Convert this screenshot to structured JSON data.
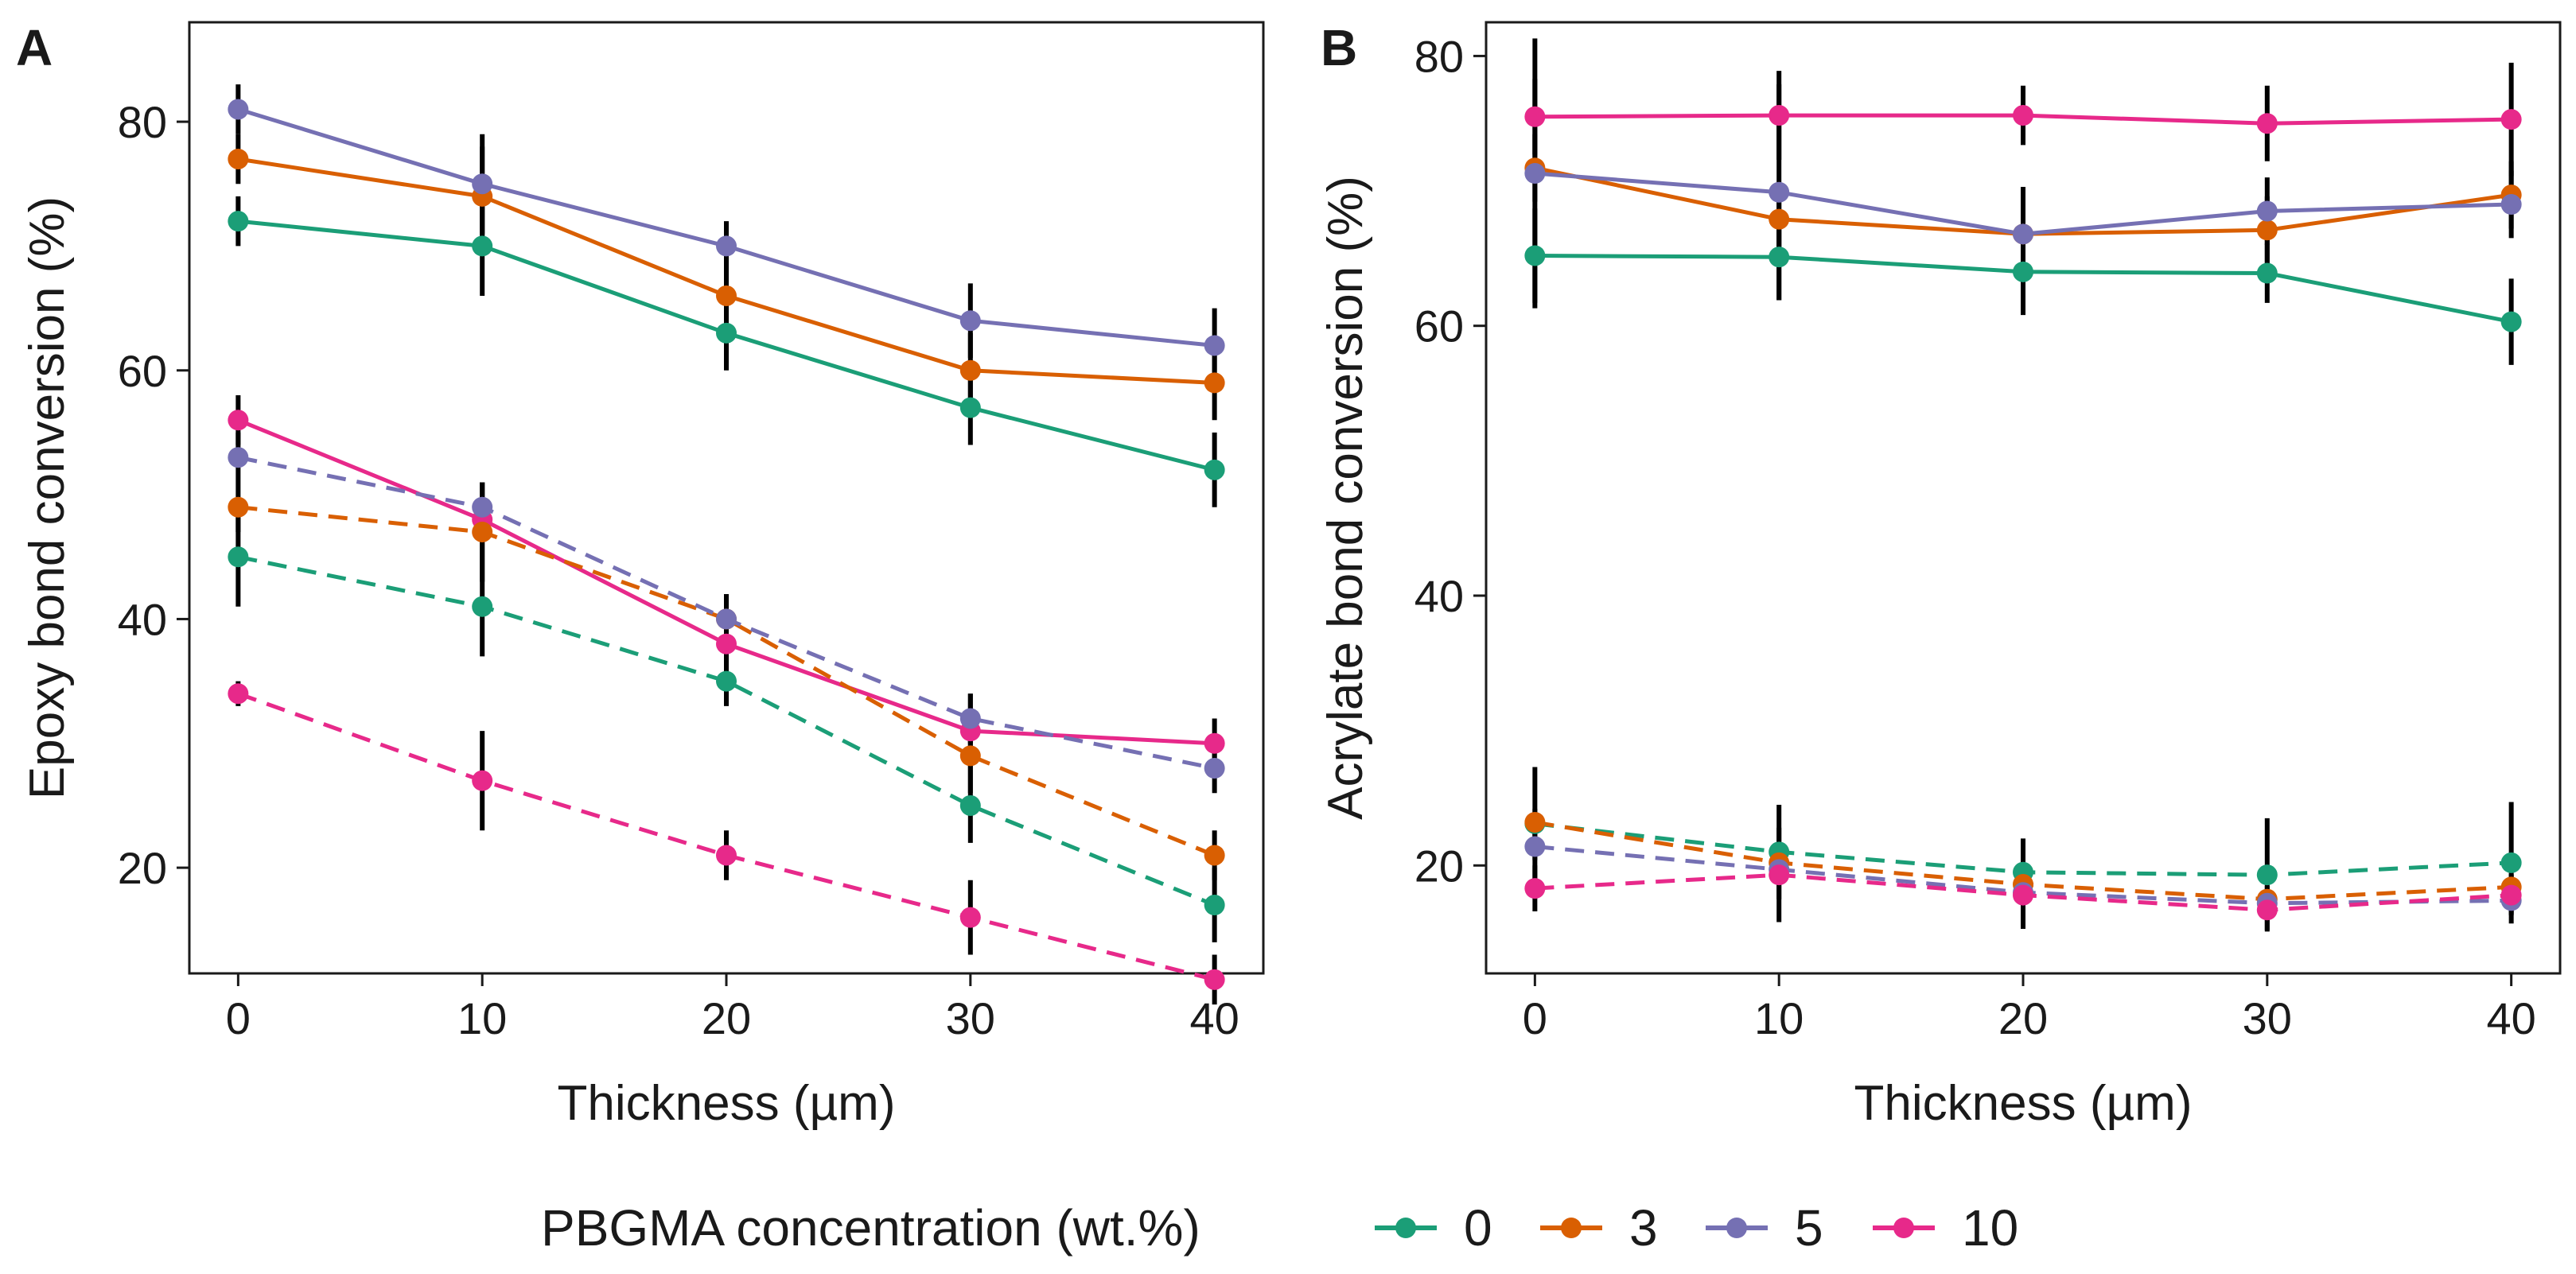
{
  "legend": {
    "title": "PBGMA concentration (wt.%)",
    "items": [
      {
        "label": "0",
        "color": "#1b9e77"
      },
      {
        "label": "3",
        "color": "#d95f02"
      },
      {
        "label": "5",
        "color": "#7570b3"
      },
      {
        "label": "10",
        "color": "#e7298a"
      }
    ]
  },
  "chart_data": [
    {
      "type": "line",
      "panel": "A",
      "xlabel": "Thickness (µm)",
      "ylabel": "Epoxy bond conversion (%)",
      "x": [
        0,
        10,
        20,
        30,
        40
      ],
      "xlim": [
        -2,
        42
      ],
      "ylim": [
        11.5,
        88
      ],
      "xticks": [
        0,
        10,
        20,
        30,
        40
      ],
      "yticks": [
        20,
        40,
        60,
        80
      ],
      "series": [
        {
          "name": "0",
          "style": "solid",
          "color": "#1b9e77",
          "values": [
            72,
            70,
            63,
            57,
            52
          ],
          "errors": [
            2,
            4,
            3,
            3,
            3
          ]
        },
        {
          "name": "3",
          "style": "solid",
          "color": "#d95f02",
          "values": [
            77,
            74,
            66,
            60,
            59
          ],
          "errors": [
            2,
            4,
            3,
            3,
            3
          ]
        },
        {
          "name": "5",
          "style": "solid",
          "color": "#7570b3",
          "values": [
            81,
            75,
            70,
            64,
            62
          ],
          "errors": [
            2,
            4,
            2,
            3,
            3
          ]
        },
        {
          "name": "10",
          "style": "solid",
          "color": "#e7298a",
          "values": [
            56,
            48,
            38,
            31,
            30
          ],
          "errors": [
            2,
            3,
            3,
            3,
            2
          ]
        },
        {
          "name": "0",
          "style": "dashed",
          "color": "#1b9e77",
          "values": [
            45,
            41,
            35,
            25,
            17
          ],
          "errors": [
            4,
            4,
            2,
            3,
            3
          ]
        },
        {
          "name": "3",
          "style": "dashed",
          "color": "#d95f02",
          "values": [
            49,
            47,
            40,
            29,
            21
          ],
          "errors": [
            2,
            4,
            2,
            3,
            2
          ]
        },
        {
          "name": "5",
          "style": "dashed",
          "color": "#7570b3",
          "values": [
            53,
            49,
            40,
            32,
            28
          ],
          "errors": [
            2,
            2,
            2,
            2,
            2
          ]
        },
        {
          "name": "10",
          "style": "dashed",
          "color": "#e7298a",
          "values": [
            34,
            27,
            21,
            16,
            11
          ],
          "errors": [
            1,
            4,
            2,
            3,
            2
          ]
        }
      ]
    },
    {
      "type": "line",
      "panel": "B",
      "xlabel": "Thickness (µm)",
      "ylabel": "Acrylate bond conversion (%)",
      "x": [
        0,
        10,
        20,
        30,
        40
      ],
      "xlim": [
        -2,
        42
      ],
      "ylim": [
        12,
        82.5
      ],
      "xticks": [
        0,
        10,
        20,
        30,
        40
      ],
      "yticks": [
        20,
        40,
        60,
        80
      ],
      "series": [
        {
          "name": "0",
          "style": "solid",
          "color": "#1b9e77",
          "values": [
            65.2,
            65.1,
            64,
            63.9,
            60.3
          ],
          "errors": [
            3.5,
            3.2,
            3.2,
            2.2,
            3.2
          ]
        },
        {
          "name": "3",
          "style": "solid",
          "color": "#d95f02",
          "values": [
            71.7,
            67.9,
            66.8,
            67.1,
            69.7
          ],
          "errors": [
            2.5,
            2.5,
            3.5,
            2.5,
            2.5
          ]
        },
        {
          "name": "5",
          "style": "solid",
          "color": "#7570b3",
          "values": [
            71.3,
            69.9,
            66.8,
            68.5,
            69
          ],
          "errors": [
            10,
            8,
            3.5,
            2.5,
            2.5
          ]
        },
        {
          "name": "10",
          "style": "solid",
          "color": "#e7298a",
          "values": [
            75.5,
            75.6,
            75.6,
            75,
            75.3
          ],
          "errors": [
            2.8,
            3.3,
            2.2,
            2.8,
            4.2
          ]
        },
        {
          "name": "0",
          "style": "dashed",
          "color": "#1b9e77",
          "values": [
            23.1,
            21,
            19.5,
            19.3,
            20.2
          ],
          "errors": [
            4.2,
            3.5,
            2.5,
            4.2,
            4.5
          ]
        },
        {
          "name": "3",
          "style": "dashed",
          "color": "#d95f02",
          "values": [
            23.2,
            20.2,
            18.6,
            17.5,
            18.4
          ],
          "errors": [
            1,
            1,
            1,
            1,
            1
          ]
        },
        {
          "name": "5",
          "style": "dashed",
          "color": "#7570b3",
          "values": [
            21.4,
            19.7,
            18,
            17.2,
            17.4
          ],
          "errors": [
            1,
            1,
            1,
            1,
            1
          ]
        },
        {
          "name": "10",
          "style": "dashed",
          "color": "#e7298a",
          "values": [
            18.3,
            19.3,
            17.8,
            16.7,
            17.8
          ],
          "errors": [
            1.7,
            3.5,
            2.5,
            1.5,
            1.5
          ]
        }
      ]
    }
  ]
}
